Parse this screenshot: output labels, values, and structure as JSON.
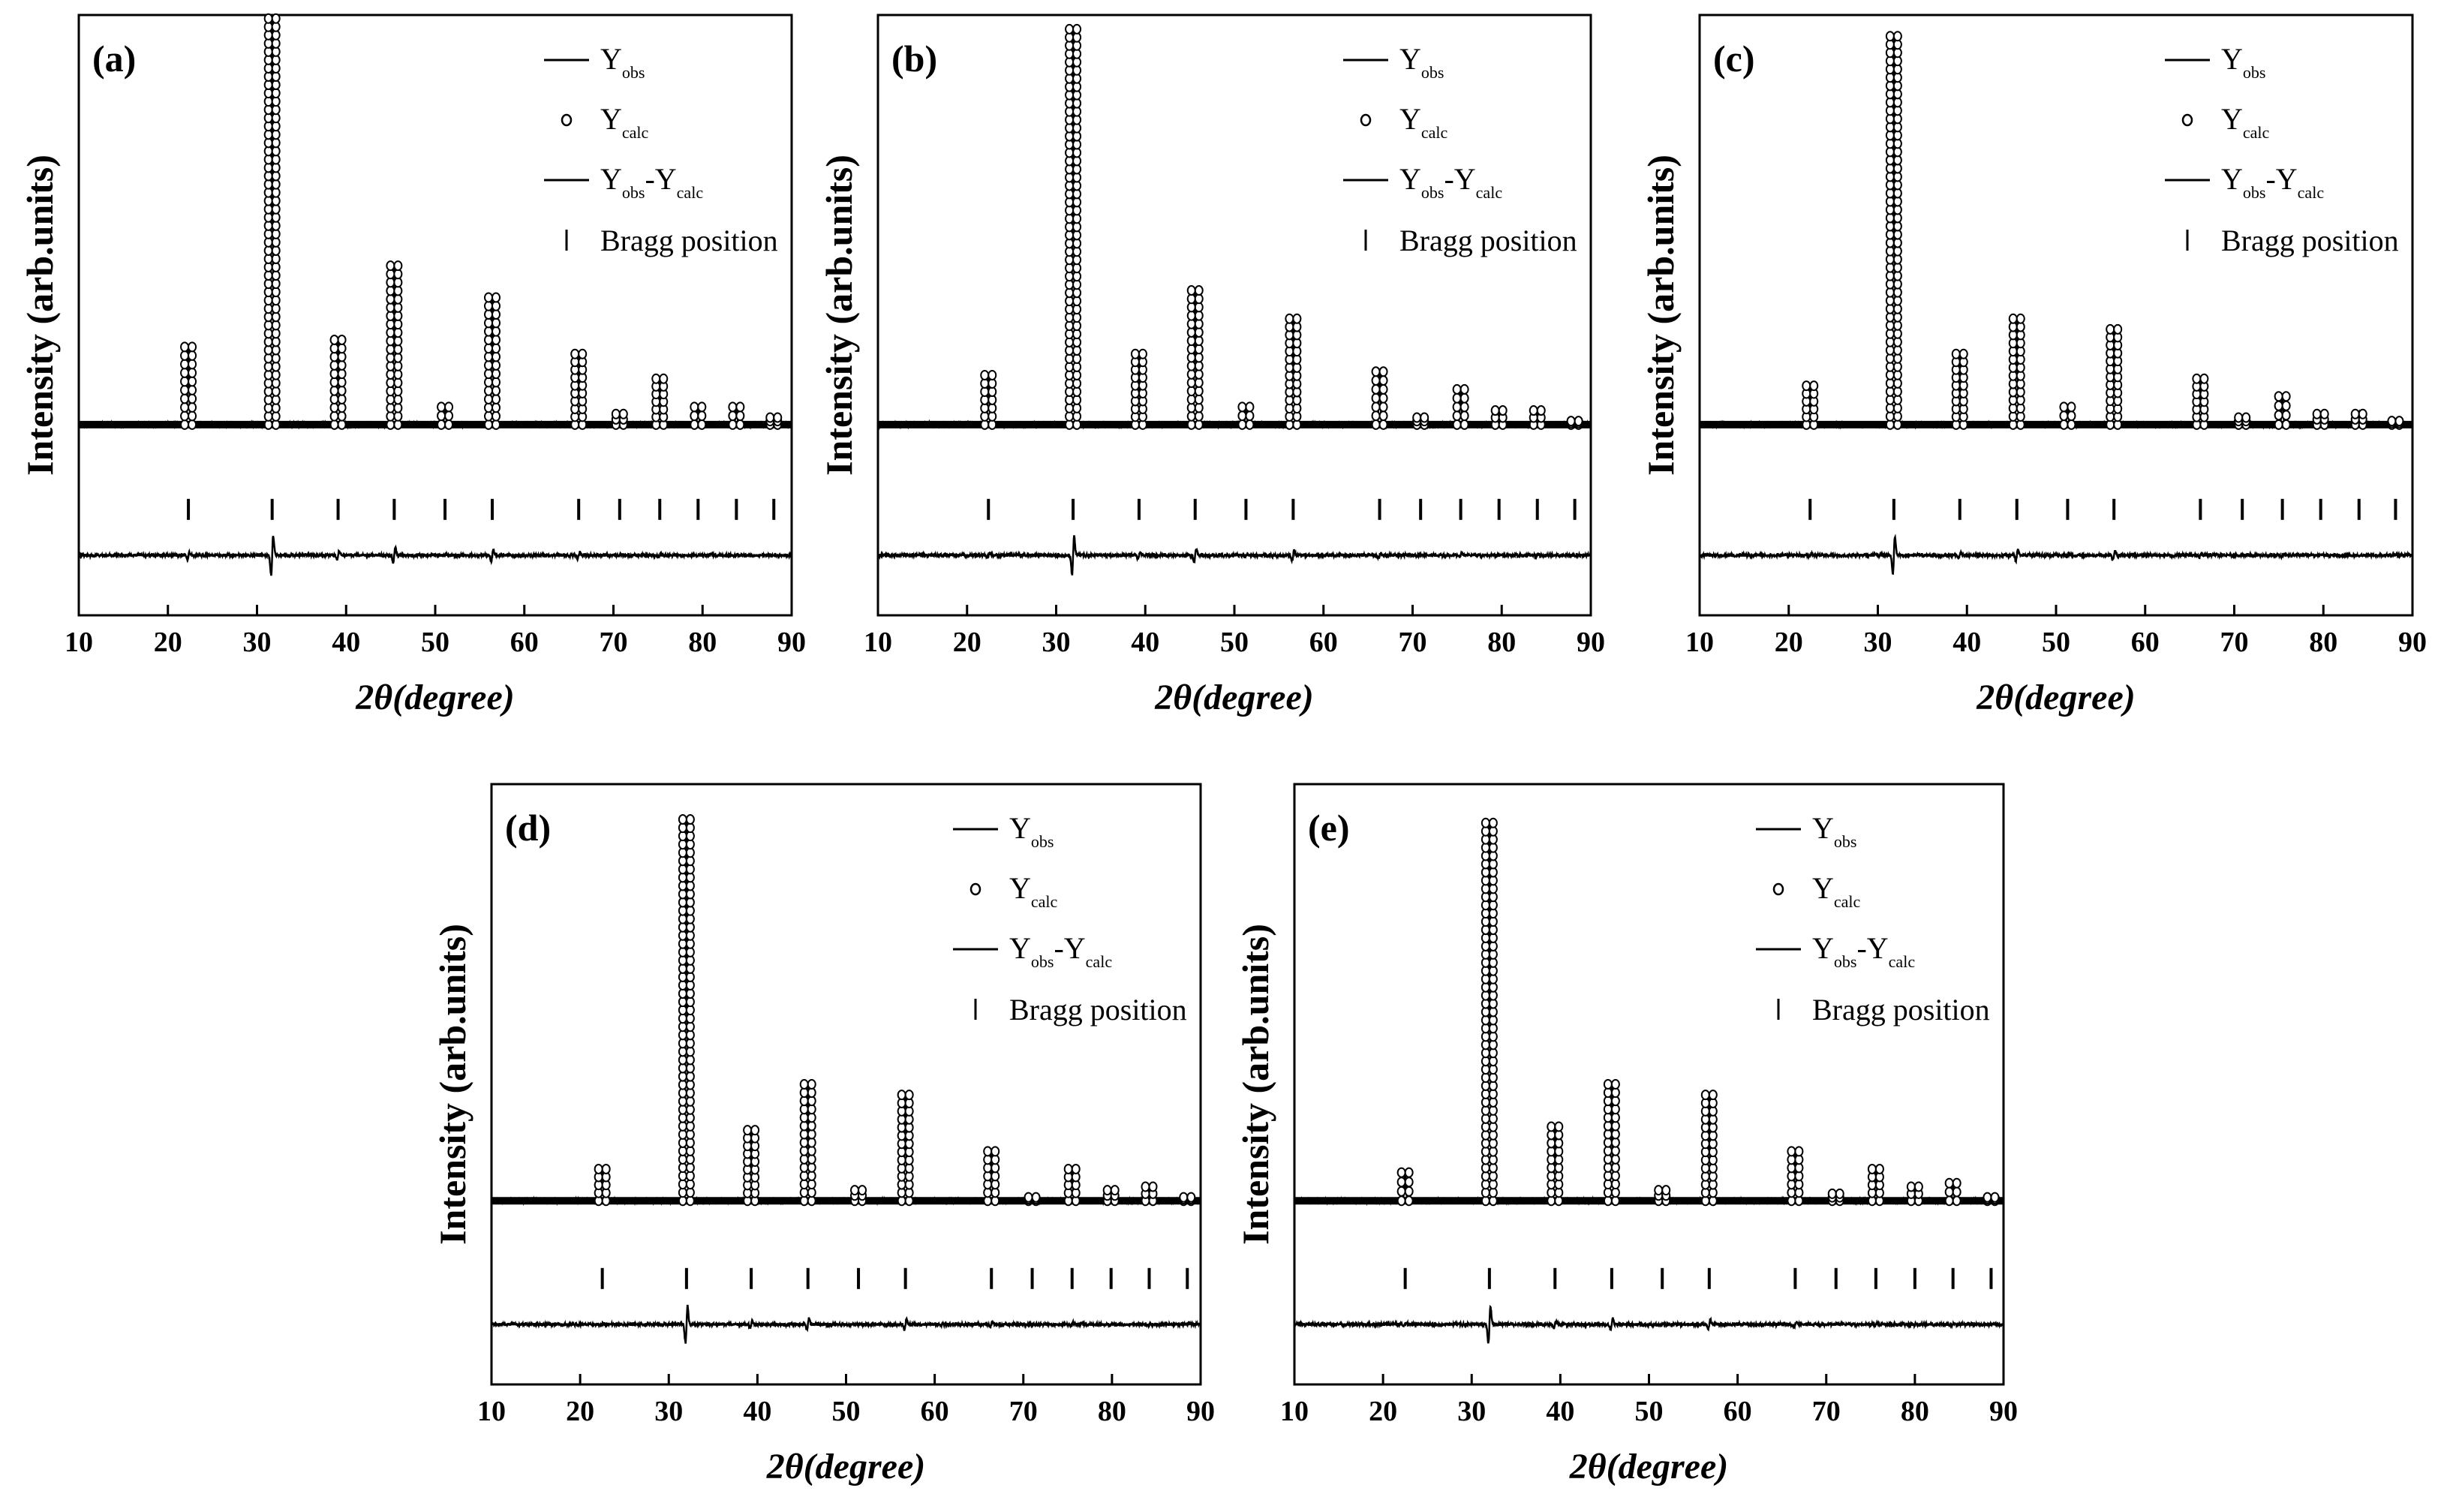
{
  "figure": {
    "legend": {
      "obs_main": "Y",
      "obs_sub": "obs",
      "calc_main": "Y",
      "calc_sub": "calc",
      "diff_obs_main": "Y",
      "diff_obs_sub": "obs",
      "diff_dash": "-",
      "diff_calc_main": "Y",
      "diff_calc_sub": "calc",
      "bragg": "Bragg position"
    },
    "ylabel": "Intensity (arb.units)",
    "xlabel_prefix": "2θ",
    "xlabel_suffix": "(degree)",
    "x_ticks": [
      "10",
      "20",
      "30",
      "40",
      "50",
      "60",
      "70",
      "80",
      "90"
    ]
  },
  "chart_data": [
    {
      "panel": "(a)",
      "type": "line",
      "xlim": [
        10,
        90
      ],
      "background": 0.12,
      "diff_level": -0.25,
      "bragg_level": -0.12,
      "peaks": [
        {
          "x": 22.3,
          "y": 0.22
        },
        {
          "x": 31.7,
          "y": 1.15
        },
        {
          "x": 39.1,
          "y": 0.24
        },
        {
          "x": 45.4,
          "y": 0.45
        },
        {
          "x": 51.1,
          "y": 0.05
        },
        {
          "x": 56.4,
          "y": 0.36
        },
        {
          "x": 66.1,
          "y": 0.2
        },
        {
          "x": 70.7,
          "y": 0.03
        },
        {
          "x": 75.2,
          "y": 0.13
        },
        {
          "x": 79.5,
          "y": 0.05
        },
        {
          "x": 83.8,
          "y": 0.05
        },
        {
          "x": 88.0,
          "y": 0.02
        }
      ],
      "bragg_positions": [
        22.3,
        31.7,
        39.1,
        45.4,
        51.1,
        56.4,
        66.1,
        70.7,
        75.2,
        79.5,
        83.8,
        88.0
      ]
    },
    {
      "panel": "(b)",
      "type": "line",
      "xlim": [
        10,
        90
      ],
      "background": 0.12,
      "diff_level": -0.25,
      "bragg_level": -0.12,
      "peaks": [
        {
          "x": 22.4,
          "y": 0.14
        },
        {
          "x": 31.9,
          "y": 1.12
        },
        {
          "x": 39.3,
          "y": 0.2
        },
        {
          "x": 45.6,
          "y": 0.38
        },
        {
          "x": 51.3,
          "y": 0.05
        },
        {
          "x": 56.6,
          "y": 0.3
        },
        {
          "x": 66.3,
          "y": 0.15
        },
        {
          "x": 70.9,
          "y": 0.02
        },
        {
          "x": 75.4,
          "y": 0.1
        },
        {
          "x": 79.7,
          "y": 0.04
        },
        {
          "x": 84.0,
          "y": 0.04
        },
        {
          "x": 88.2,
          "y": 0.01
        }
      ],
      "bragg_positions": [
        22.4,
        31.9,
        39.3,
        45.6,
        51.3,
        56.6,
        66.3,
        70.9,
        75.4,
        79.7,
        84.0,
        88.2
      ]
    },
    {
      "panel": "(c)",
      "type": "line",
      "xlim": [
        10,
        90
      ],
      "background": 0.12,
      "diff_level": -0.25,
      "bragg_level": -0.12,
      "peaks": [
        {
          "x": 22.4,
          "y": 0.11
        },
        {
          "x": 31.8,
          "y": 1.1
        },
        {
          "x": 39.2,
          "y": 0.2
        },
        {
          "x": 45.6,
          "y": 0.3
        },
        {
          "x": 51.3,
          "y": 0.05
        },
        {
          "x": 56.5,
          "y": 0.27
        },
        {
          "x": 66.2,
          "y": 0.13
        },
        {
          "x": 70.9,
          "y": 0.02
        },
        {
          "x": 75.4,
          "y": 0.08
        },
        {
          "x": 79.7,
          "y": 0.03
        },
        {
          "x": 84.0,
          "y": 0.03
        },
        {
          "x": 88.1,
          "y": 0.01
        }
      ],
      "bragg_positions": [
        22.4,
        31.8,
        39.2,
        45.6,
        51.3,
        56.5,
        66.2,
        70.9,
        75.4,
        79.7,
        84.0,
        88.1
      ]
    },
    {
      "panel": "(d)",
      "type": "line",
      "xlim": [
        10,
        90
      ],
      "background": 0.1,
      "diff_level": -0.25,
      "bragg_level": -0.12,
      "peaks": [
        {
          "x": 22.5,
          "y": 0.09
        },
        {
          "x": 32.0,
          "y": 1.08
        },
        {
          "x": 39.3,
          "y": 0.2
        },
        {
          "x": 45.7,
          "y": 0.33
        },
        {
          "x": 51.4,
          "y": 0.03
        },
        {
          "x": 56.7,
          "y": 0.3
        },
        {
          "x": 66.4,
          "y": 0.14
        },
        {
          "x": 71.0,
          "y": 0.01
        },
        {
          "x": 75.5,
          "y": 0.09
        },
        {
          "x": 79.9,
          "y": 0.03
        },
        {
          "x": 84.2,
          "y": 0.04
        },
        {
          "x": 88.5,
          "y": 0.01
        }
      ],
      "bragg_positions": [
        22.5,
        32.0,
        39.3,
        45.7,
        51.4,
        56.7,
        66.4,
        71.0,
        75.5,
        79.9,
        84.2,
        88.5
      ]
    },
    {
      "panel": "(e)",
      "type": "line",
      "xlim": [
        10,
        90
      ],
      "background": 0.1,
      "diff_level": -0.25,
      "bragg_level": -0.12,
      "peaks": [
        {
          "x": 22.5,
          "y": 0.08
        },
        {
          "x": 32.0,
          "y": 1.07
        },
        {
          "x": 39.4,
          "y": 0.21
        },
        {
          "x": 45.8,
          "y": 0.33
        },
        {
          "x": 51.5,
          "y": 0.03
        },
        {
          "x": 56.8,
          "y": 0.3
        },
        {
          "x": 66.5,
          "y": 0.14
        },
        {
          "x": 71.1,
          "y": 0.02
        },
        {
          "x": 75.6,
          "y": 0.09
        },
        {
          "x": 80.0,
          "y": 0.04
        },
        {
          "x": 84.3,
          "y": 0.05
        },
        {
          "x": 88.6,
          "y": 0.01
        }
      ],
      "bragg_positions": [
        22.5,
        32.0,
        39.4,
        45.8,
        51.5,
        56.8,
        66.5,
        71.1,
        75.6,
        80.0,
        84.3,
        88.6
      ]
    }
  ]
}
